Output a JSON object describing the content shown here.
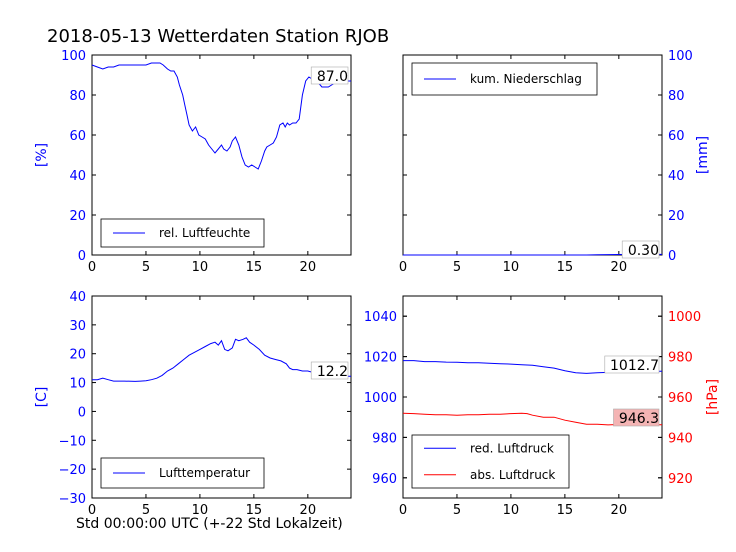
{
  "page_title": "2018-05-13 Wetterdaten Station RJOB",
  "x_caption": "Std 00:00:00 UTC (+-22 Std Lokalzeit)",
  "colors": {
    "blue": "#0000ff",
    "red": "#ff0000",
    "axis": "#000000",
    "pink": "#f4b4b4"
  },
  "chart_data": [
    {
      "id": "humidity",
      "type": "line",
      "ylabel": "[%]",
      "xlim": [
        0,
        24
      ],
      "ylim": [
        0,
        100
      ],
      "xticks": [
        0,
        5,
        10,
        15,
        20
      ],
      "yticks": [
        0,
        20,
        40,
        60,
        80,
        100
      ],
      "ytick_color": "#0000ff",
      "ytick_side": "left",
      "legend": {
        "position": "lower-left"
      },
      "annotation": "87.0",
      "series": [
        {
          "name": "rel. Luftfeuchte",
          "color": "#0000ff",
          "x": [
            0,
            0.5,
            1,
            1.5,
            2,
            2.5,
            3,
            3.5,
            4,
            4.5,
            5,
            5.5,
            6,
            6.3,
            6.6,
            7,
            7.3,
            7.6,
            7.9,
            8.1,
            8.4,
            8.6,
            8.8,
            9,
            9.3,
            9.6,
            9.9,
            10.2,
            10.5,
            10.8,
            11.1,
            11.4,
            11.7,
            12,
            12.2,
            12.5,
            12.8,
            13,
            13.3,
            13.6,
            13.9,
            14.2,
            14.5,
            14.8,
            15.1,
            15.4,
            15.7,
            16,
            16.2,
            16.5,
            16.8,
            17.1,
            17.4,
            17.7,
            17.9,
            18.1,
            18.3,
            18.6,
            18.9,
            19.2,
            19.5,
            19.8,
            20.1,
            20.4,
            20.7,
            21,
            21.3,
            21.6,
            21.9,
            22.2,
            22.5,
            22.8,
            23.1,
            23.4,
            23.7,
            24
          ],
          "y": [
            95,
            94,
            93,
            94,
            94,
            95,
            95,
            95,
            95,
            95,
            95,
            96,
            96,
            96,
            95,
            93,
            92,
            92,
            89,
            85,
            80,
            75,
            70,
            65,
            62,
            64,
            60,
            59,
            58,
            55,
            53,
            51,
            53,
            55,
            53,
            52,
            54,
            57,
            59,
            55,
            49,
            45,
            44,
            45,
            44,
            43,
            47,
            52,
            54,
            55,
            56,
            59,
            65,
            66,
            64,
            66,
            65,
            66,
            66,
            68,
            80,
            87,
            89,
            88,
            87,
            86,
            84,
            84,
            84,
            85,
            86,
            86,
            87,
            87,
            87,
            87
          ]
        }
      ]
    },
    {
      "id": "precip",
      "type": "line",
      "ylabel": "[mm]",
      "xlim": [
        0,
        24
      ],
      "ylim": [
        0,
        100
      ],
      "xticks": [
        0,
        5,
        10,
        15,
        20
      ],
      "yticks": [
        0,
        20,
        40,
        60,
        80,
        100
      ],
      "ytick_color": "#0000ff",
      "ytick_side": "right",
      "legend": {
        "position": "upper-left"
      },
      "annotation": "0.30",
      "series": [
        {
          "name": "kum. Niederschlag",
          "color": "#0000ff",
          "x": [
            0,
            17,
            18,
            19,
            20,
            21,
            22,
            23,
            24
          ],
          "y": [
            0,
            0,
            0.1,
            0.2,
            0.25,
            0.3,
            0.3,
            0.3,
            0.3
          ]
        }
      ]
    },
    {
      "id": "temperature",
      "type": "line",
      "ylabel": "[C]",
      "xlim": [
        0,
        24
      ],
      "ylim": [
        -30,
        40
      ],
      "xticks": [
        0,
        5,
        10,
        15,
        20
      ],
      "yticks": [
        -30,
        -20,
        -10,
        0,
        10,
        20,
        30,
        40
      ],
      "ytick_color": "#0000ff",
      "ytick_side": "left",
      "legend": {
        "position": "lower-left"
      },
      "annotation": "12.2",
      "series": [
        {
          "name": "Lufttemperatur",
          "color": "#0000ff",
          "x": [
            0,
            0.5,
            1,
            1.5,
            2,
            3,
            4,
            4.5,
            5,
            5.5,
            6,
            6.5,
            7,
            7.5,
            8,
            8.5,
            9,
            9.5,
            10,
            10.5,
            11,
            11.4,
            11.7,
            12,
            12.3,
            12.6,
            13,
            13.3,
            13.6,
            14,
            14.3,
            14.6,
            15,
            15.5,
            16,
            16.5,
            17,
            17.5,
            18,
            18.3,
            18.6,
            19,
            19.5,
            20,
            20.5,
            21,
            21.5,
            22,
            22.5,
            23,
            23.5,
            24
          ],
          "y": [
            11,
            11,
            11.5,
            11,
            10.5,
            10.5,
            10.4,
            10.5,
            10.6,
            11,
            11.5,
            12.5,
            14,
            15,
            16.5,
            18,
            19.5,
            20.5,
            21.5,
            22.5,
            23.5,
            24,
            23,
            24.5,
            21.5,
            21,
            22,
            25,
            24.5,
            25,
            25.5,
            24,
            23,
            21.5,
            19.5,
            18.5,
            18,
            17.5,
            16.5,
            15,
            14.5,
            14.5,
            14,
            14,
            13.5,
            13,
            12.5,
            12.2,
            12.2,
            12.2,
            12.2,
            12.2
          ]
        }
      ]
    },
    {
      "id": "pressure",
      "type": "line",
      "ylabel_right": "[hPa]",
      "xlim": [
        0,
        24
      ],
      "ylim_left": [
        950,
        1050
      ],
      "ylim_right": [
        910,
        1010
      ],
      "xticks": [
        0,
        5,
        10,
        15,
        20
      ],
      "yticks_left": [
        960,
        980,
        1000,
        1020,
        1040
      ],
      "yticks_right": [
        920,
        940,
        960,
        980,
        1000
      ],
      "ytick_left_color": "#0000ff",
      "ytick_right_color": "#ff0000",
      "legend": {
        "position": "lower-left"
      },
      "annotation_left": "1012.7",
      "annotation_right": "946.3",
      "series": [
        {
          "name": "red. Luftdruck",
          "color": "#0000ff",
          "axis": "left",
          "x": [
            0,
            1,
            2,
            3,
            4,
            5,
            6,
            7,
            8,
            9,
            10,
            11,
            12,
            13,
            14,
            15,
            16,
            17,
            18,
            19,
            20,
            21,
            22,
            23,
            24
          ],
          "y": [
            1018,
            1018,
            1017.5,
            1017.5,
            1017.3,
            1017.2,
            1017,
            1017,
            1016.7,
            1016.5,
            1016.3,
            1016,
            1015.7,
            1015,
            1014.3,
            1013,
            1012,
            1011.7,
            1012,
            1012.2,
            1012.3,
            1012.5,
            1012.7,
            1012.8,
            1012.7
          ]
        },
        {
          "name": "abs. Luftdruck",
          "color": "#ff0000",
          "axis": "right",
          "x": [
            0,
            1,
            2,
            3,
            4,
            5,
            6,
            7,
            8,
            9,
            10,
            11,
            11.5,
            12,
            13,
            14,
            15,
            16,
            17,
            18,
            19,
            20,
            21,
            22,
            23,
            24
          ],
          "y": [
            952,
            951.8,
            951.5,
            951.2,
            951.2,
            951,
            951.2,
            951.2,
            951.5,
            951.5,
            951.8,
            952,
            951.8,
            951,
            950,
            950,
            948.5,
            947.5,
            946.5,
            946.5,
            946.2,
            946.4,
            946.5,
            946.3,
            946.3,
            946.3
          ]
        }
      ]
    }
  ]
}
